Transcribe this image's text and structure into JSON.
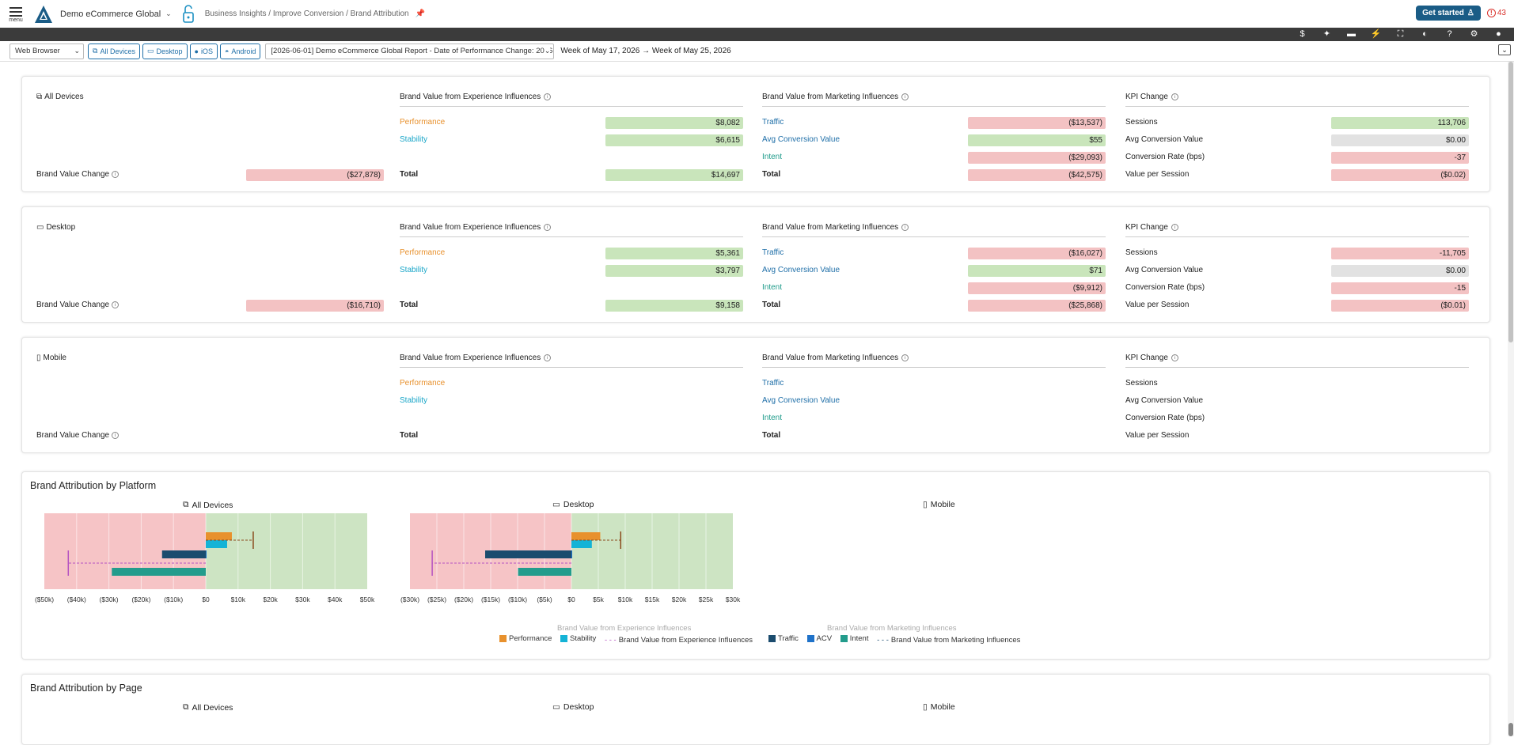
{
  "topbar": {
    "menu_label": "menu",
    "org_name": "Demo eCommerce Global",
    "breadcrumb": "Business Insights / Improve Conversion / Brand Attribution",
    "get_started": "Get started",
    "alert_count": "43"
  },
  "toolbar_icons": [
    "dollar-icon",
    "sparkle-icon",
    "comment-icon",
    "bolt-icon",
    "fullscreen-icon",
    "contrast-icon",
    "help-icon",
    "gear-icon",
    "user-icon"
  ],
  "filters": {
    "browser": "Web Browser",
    "devices": [
      "All Devices",
      "Desktop",
      "iOS",
      "Android"
    ],
    "report": "[2026-06-01] Demo eCommerce Global Report - Date of Performance Change: 2026-",
    "week_from": "Week of May 17, 2026",
    "week_to": "Week of May 25, 2026"
  },
  "labels": {
    "bvc": "Brand Value Change",
    "exp_header": "Brand Value from Experience Influences",
    "mkt_header": "Brand Value from Marketing Influences",
    "kpi_header": "KPI Change",
    "performance": "Performance",
    "stability": "Stability",
    "total": "Total",
    "traffic": "Traffic",
    "acv": "Avg Conversion Value",
    "intent": "Intent",
    "sessions": "Sessions",
    "avg_conv_value": "Avg Conversion Value",
    "conv_rate": "Conversion Rate (bps)",
    "value_per_session": "Value per Session"
  },
  "segments": [
    {
      "name": "All Devices",
      "bvc": "($27,878)",
      "exp": {
        "performance": "$8,082",
        "stability": "$6,615",
        "total": "$14,697"
      },
      "mkt": {
        "traffic": "($13,537)",
        "acv": "$55",
        "intent": "($29,093)",
        "total": "($42,575)"
      },
      "kpi": {
        "sessions": "113,706",
        "avg_conv_value": "$0.00",
        "conv_rate": "-37",
        "value_per_session": "($0.02)"
      }
    },
    {
      "name": "Desktop",
      "bvc": "($16,710)",
      "exp": {
        "performance": "$5,361",
        "stability": "$3,797",
        "total": "$9,158"
      },
      "mkt": {
        "traffic": "($16,027)",
        "acv": "$71",
        "intent": "($9,912)",
        "total": "($25,868)"
      },
      "kpi": {
        "sessions": "-11,705",
        "avg_conv_value": "$0.00",
        "conv_rate": "-15",
        "value_per_session": "($0.01)"
      }
    },
    {
      "name": "Mobile"
    }
  ],
  "platform_section": {
    "title": "Brand Attribution by Platform",
    "headers": [
      "All Devices",
      "Desktop",
      "Mobile"
    ],
    "legend_exp_title": "Brand Value from Experience Influences",
    "legend_mkt_title": "Brand Value from Marketing Influences",
    "legend_exp": [
      "Performance",
      "Stability",
      "Brand Value from Experience Influences"
    ],
    "legend_mkt": [
      "Traffic",
      "ACV",
      "Intent",
      "Brand Value from Marketing Influences"
    ]
  },
  "page_section": {
    "title": "Brand Attribution by Page",
    "headers": [
      "All Devices",
      "Desktop",
      "Mobile"
    ]
  },
  "colors": {
    "performance": "#e8912d",
    "stability": "#14b3d6",
    "traffic": "#1b4c6e",
    "acv": "#1f72c9",
    "intent": "#239c8c",
    "exp_line": "#8a4a1c",
    "mkt_line": "#b552c2"
  },
  "chart_data": [
    {
      "type": "bar",
      "title": "All Devices",
      "orientation": "horizontal",
      "xlim": [
        -50000,
        50000
      ],
      "x_ticks": [
        "($50k)",
        "($40k)",
        "($30k)",
        "($20k)",
        "($10k)",
        "$0",
        "$10k",
        "$20k",
        "$30k",
        "$40k",
        "$50k"
      ],
      "series": [
        {
          "name": "Performance",
          "values": [
            8082
          ]
        },
        {
          "name": "Stability",
          "values": [
            6615
          ]
        },
        {
          "name": "Traffic",
          "values": [
            -13537
          ]
        },
        {
          "name": "ACV",
          "values": [
            55
          ]
        },
        {
          "name": "Intent",
          "values": [
            -29093
          ]
        },
        {
          "name": "Brand Value from Experience Influences",
          "values": [
            14697
          ]
        },
        {
          "name": "Brand Value from Marketing Influences",
          "values": [
            -42575
          ]
        }
      ]
    },
    {
      "type": "bar",
      "title": "Desktop",
      "orientation": "horizontal",
      "xlim": [
        -30000,
        30000
      ],
      "x_ticks": [
        "($30k)",
        "($25k)",
        "($20k)",
        "($15k)",
        "($10k)",
        "($5k)",
        "$0",
        "$5k",
        "$10k",
        "$15k",
        "$20k",
        "$25k",
        "$30k"
      ],
      "series": [
        {
          "name": "Performance",
          "values": [
            5361
          ]
        },
        {
          "name": "Stability",
          "values": [
            3797
          ]
        },
        {
          "name": "Traffic",
          "values": [
            -16027
          ]
        },
        {
          "name": "ACV",
          "values": [
            71
          ]
        },
        {
          "name": "Intent",
          "values": [
            -9912
          ]
        },
        {
          "name": "Brand Value from Experience Influences",
          "values": [
            9158
          ]
        },
        {
          "name": "Brand Value from Marketing Influences",
          "values": [
            -25868
          ]
        }
      ]
    }
  ]
}
